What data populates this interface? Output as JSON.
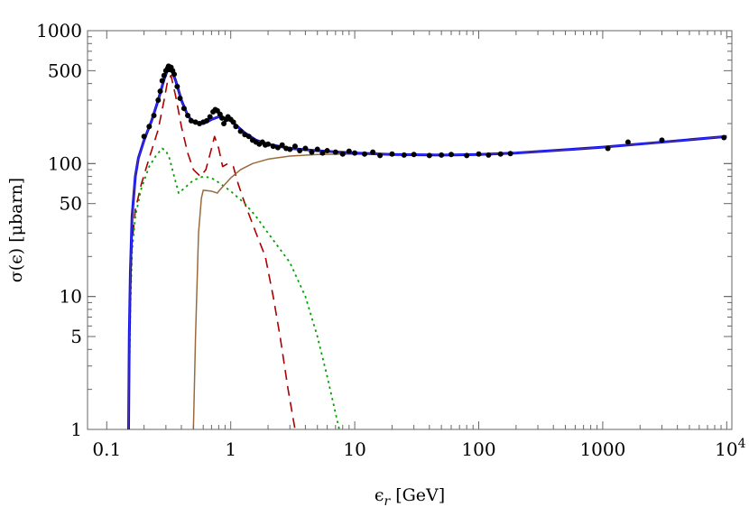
{
  "chart_data": {
    "type": "line",
    "title": "",
    "xlabel": "ϵ_r [GeV]",
    "ylabel": "σ(ϵ) [μbarn]",
    "x_scale": "log",
    "y_scale": "log",
    "xlim": [
      0.07,
      11000
    ],
    "ylim": [
      1,
      1000
    ],
    "x_ticks": [
      {
        "value": 0.1,
        "label": "0.1"
      },
      {
        "value": 1,
        "label": "1"
      },
      {
        "value": 10,
        "label": "10"
      },
      {
        "value": 100,
        "label": "100"
      },
      {
        "value": 1000,
        "label": "1000"
      },
      {
        "value": 10000,
        "label": "10",
        "sup": "4"
      }
    ],
    "y_ticks": [
      {
        "value": 1,
        "label": "1"
      },
      {
        "value": 5,
        "label": "5"
      },
      {
        "value": 10,
        "label": "10"
      },
      {
        "value": 50,
        "label": "50"
      },
      {
        "value": 100,
        "label": "100"
      },
      {
        "value": 500,
        "label": "500"
      },
      {
        "value": 1000,
        "label": "1000"
      }
    ],
    "grid": false,
    "legend": "none",
    "series": [
      {
        "key": "total",
        "style": "solid",
        "color": "#1010e0",
        "points": [
          [
            0.15,
            1
          ],
          [
            0.152,
            5
          ],
          [
            0.155,
            15
          ],
          [
            0.16,
            40
          ],
          [
            0.17,
            80
          ],
          [
            0.18,
            110
          ],
          [
            0.2,
            150
          ],
          [
            0.23,
            210
          ],
          [
            0.26,
            300
          ],
          [
            0.29,
            430
          ],
          [
            0.31,
            510
          ],
          [
            0.33,
            520
          ],
          [
            0.36,
            420
          ],
          [
            0.4,
            300
          ],
          [
            0.45,
            230
          ],
          [
            0.5,
            205
          ],
          [
            0.6,
            200
          ],
          [
            0.7,
            215
          ],
          [
            0.8,
            225
          ],
          [
            0.9,
            220
          ],
          [
            1.0,
            210
          ],
          [
            1.1,
            195
          ],
          [
            1.3,
            170
          ],
          [
            1.6,
            150
          ],
          [
            2,
            140
          ],
          [
            3,
            130
          ],
          [
            5,
            125
          ],
          [
            10,
            120
          ],
          [
            20,
            117
          ],
          [
            50,
            116
          ],
          [
            100,
            117
          ],
          [
            200,
            120
          ],
          [
            500,
            127
          ],
          [
            1000,
            133
          ],
          [
            3000,
            145
          ],
          [
            10000,
            160
          ]
        ]
      },
      {
        "key": "dashed",
        "style": "dashed",
        "color": "#aa0000",
        "points": [
          [
            0.15,
            1
          ],
          [
            0.155,
            10
          ],
          [
            0.16,
            25
          ],
          [
            0.17,
            45
          ],
          [
            0.19,
            70
          ],
          [
            0.22,
            110
          ],
          [
            0.26,
            180
          ],
          [
            0.29,
            300
          ],
          [
            0.31,
            420
          ],
          [
            0.33,
            460
          ],
          [
            0.36,
            320
          ],
          [
            0.4,
            190
          ],
          [
            0.45,
            120
          ],
          [
            0.5,
            90
          ],
          [
            0.57,
            80
          ],
          [
            0.63,
            90
          ],
          [
            0.7,
            130
          ],
          [
            0.74,
            160
          ],
          [
            0.8,
            130
          ],
          [
            0.86,
            95
          ],
          [
            0.95,
            100
          ],
          [
            1.05,
            95
          ],
          [
            1.15,
            70
          ],
          [
            1.3,
            50
          ],
          [
            1.6,
            30
          ],
          [
            1.9,
            20
          ],
          [
            2.2,
            10
          ],
          [
            2.5,
            5
          ],
          [
            2.9,
            2
          ],
          [
            3.3,
            1
          ]
        ]
      },
      {
        "key": "dotted",
        "style": "dotted",
        "color": "#00a000",
        "points": [
          [
            0.15,
            1
          ],
          [
            0.155,
            8
          ],
          [
            0.16,
            22
          ],
          [
            0.17,
            40
          ],
          [
            0.19,
            65
          ],
          [
            0.22,
            95
          ],
          [
            0.25,
            115
          ],
          [
            0.28,
            130
          ],
          [
            0.3,
            125
          ],
          [
            0.32,
            110
          ],
          [
            0.35,
            80
          ],
          [
            0.38,
            60
          ],
          [
            0.42,
            65
          ],
          [
            0.5,
            75
          ],
          [
            0.6,
            80
          ],
          [
            0.7,
            78
          ],
          [
            0.8,
            72
          ],
          [
            1.0,
            62
          ],
          [
            1.3,
            50
          ],
          [
            1.6,
            40
          ],
          [
            2,
            30
          ],
          [
            3,
            18
          ],
          [
            4,
            10
          ],
          [
            5,
            5
          ],
          [
            6,
            2.5
          ],
          [
            7.5,
            1
          ]
        ]
      },
      {
        "key": "brown",
        "style": "solid",
        "color": "#9b6a3c",
        "points": [
          [
            0.5,
            1
          ],
          [
            0.52,
            5
          ],
          [
            0.55,
            30
          ],
          [
            0.58,
            55
          ],
          [
            0.6,
            63
          ],
          [
            0.7,
            62
          ],
          [
            0.78,
            60
          ],
          [
            0.8,
            62
          ],
          [
            0.9,
            70
          ],
          [
            1.0,
            78
          ],
          [
            1.2,
            90
          ],
          [
            1.5,
            100
          ],
          [
            2,
            108
          ],
          [
            3,
            114
          ],
          [
            5,
            117
          ],
          [
            10,
            118
          ],
          [
            20,
            117
          ],
          [
            50,
            116
          ],
          [
            100,
            117
          ],
          [
            200,
            120
          ],
          [
            500,
            127
          ],
          [
            1000,
            133
          ],
          [
            3000,
            145
          ],
          [
            10000,
            160
          ]
        ]
      }
    ],
    "data_points": [
      [
        0.2,
        160
      ],
      [
        0.22,
        190
      ],
      [
        0.24,
        230
      ],
      [
        0.26,
        300
      ],
      [
        0.27,
        350
      ],
      [
        0.28,
        420
      ],
      [
        0.29,
        460
      ],
      [
        0.3,
        500
      ],
      [
        0.31,
        520
      ],
      [
        0.315,
        540
      ],
      [
        0.32,
        510
      ],
      [
        0.33,
        530
      ],
      [
        0.34,
        500
      ],
      [
        0.35,
        470
      ],
      [
        0.37,
        380
      ],
      [
        0.39,
        310
      ],
      [
        0.42,
        260
      ],
      [
        0.45,
        230
      ],
      [
        0.48,
        210
      ],
      [
        0.52,
        205
      ],
      [
        0.56,
        200
      ],
      [
        0.6,
        205
      ],
      [
        0.64,
        210
      ],
      [
        0.68,
        225
      ],
      [
        0.72,
        245
      ],
      [
        0.75,
        255
      ],
      [
        0.78,
        250
      ],
      [
        0.82,
        235
      ],
      [
        0.85,
        220
      ],
      [
        0.88,
        200
      ],
      [
        0.92,
        215
      ],
      [
        0.95,
        225
      ],
      [
        1.0,
        215
      ],
      [
        1.05,
        205
      ],
      [
        1.1,
        190
      ],
      [
        1.2,
        175
      ],
      [
        1.3,
        165
      ],
      [
        1.4,
        160
      ],
      [
        1.5,
        150
      ],
      [
        1.6,
        145
      ],
      [
        1.7,
        140
      ],
      [
        1.8,
        145
      ],
      [
        1.9,
        138
      ],
      [
        2.0,
        140
      ],
      [
        2.2,
        135
      ],
      [
        2.4,
        132
      ],
      [
        2.6,
        138
      ],
      [
        2.8,
        130
      ],
      [
        3.0,
        128
      ],
      [
        3.3,
        135
      ],
      [
        3.6,
        125
      ],
      [
        4,
        130
      ],
      [
        4.5,
        122
      ],
      [
        5,
        128
      ],
      [
        5.5,
        120
      ],
      [
        6,
        125
      ],
      [
        7,
        122
      ],
      [
        8,
        118
      ],
      [
        9,
        124
      ],
      [
        10,
        120
      ],
      [
        12,
        118
      ],
      [
        14,
        122
      ],
      [
        16,
        115
      ],
      [
        20,
        118
      ],
      [
        25,
        116
      ],
      [
        30,
        117
      ],
      [
        40,
        115
      ],
      [
        50,
        116
      ],
      [
        60,
        117
      ],
      [
        80,
        115
      ],
      [
        100,
        118
      ],
      [
        120,
        116
      ],
      [
        150,
        118
      ],
      [
        180,
        119
      ],
      [
        1100,
        130
      ],
      [
        1600,
        145
      ],
      [
        3000,
        150
      ],
      [
        9500,
        157
      ]
    ]
  }
}
